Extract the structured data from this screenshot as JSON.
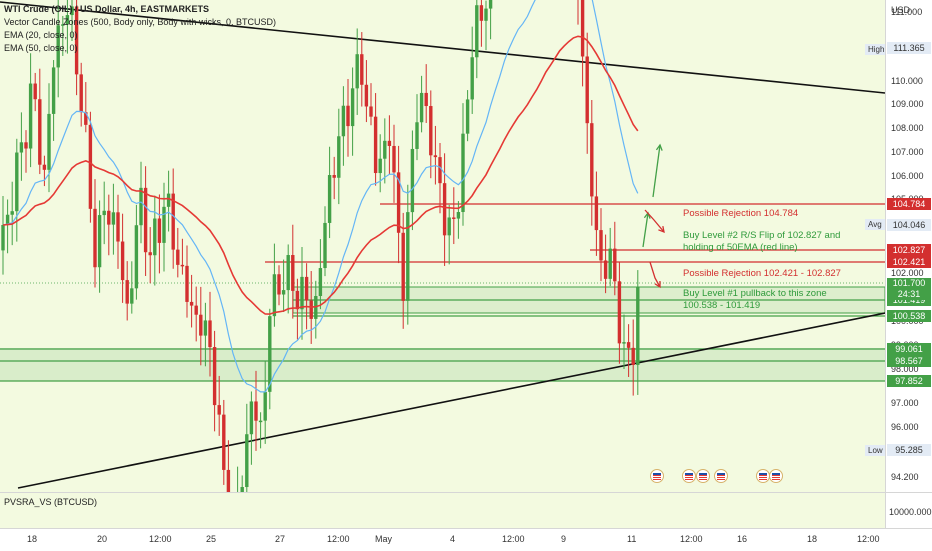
{
  "header": {
    "symbol_line": "WTI Crude (OIL) / US Dollar, 4h, EASTMARKETS",
    "indicator_1": "Vector Candle Zones (500, Body only, Body with wicks, 0, BTCUSD)",
    "indicator_2": "EMA (20, close, 0)",
    "indicator_3": "EMA (50, close, 0)"
  },
  "lower_pane": {
    "label": "PVSRA_VS (BTCUSD)",
    "axis_value": "10000.000"
  },
  "price_axis": {
    "currency": "USD",
    "ticks": [
      "111.000",
      "110.000",
      "109.000",
      "108.000",
      "107.000",
      "106.000",
      "105.000",
      "104.046",
      "103.000",
      "102.000",
      "101.000",
      "100.000",
      "99.000",
      "98.000",
      "97.000",
      "96.000",
      "95.000",
      "94.200"
    ],
    "high_tag": "High",
    "high_value": "111.365",
    "avg_tag": "Avg",
    "avg_value": "104.046",
    "low_tag": "Low",
    "low_value": "95.285",
    "current_price": "101.700",
    "countdown": "24:31"
  },
  "levels": [
    {
      "label": "104.784",
      "color": "#d32f2f"
    },
    {
      "label": "102.827",
      "color": "#d32f2f"
    },
    {
      "label": "102.421",
      "color": "#d32f2f"
    },
    {
      "label": "101.419",
      "color": "#43a047"
    },
    {
      "label": "100.538",
      "color": "#43a047"
    },
    {
      "label": "99.061",
      "color": "#43a047"
    },
    {
      "label": "98.567",
      "color": "#43a047"
    },
    {
      "label": "97.852",
      "color": "#43a047"
    }
  ],
  "annotations": {
    "rejection_1": "Possible Rejection 104.784",
    "buy_level_2_line1": "Buy Level #2 R/S Flip of 102.827 and",
    "buy_level_2_line2": "holding of 50EMA (red line)",
    "rejection_2": "Possible Rejection 102.421 - 102.827",
    "buy_level_1_line1": "Buy Level #1 pullback to this zone",
    "buy_level_1_line2": "100.538 - 101.419"
  },
  "time_axis": [
    "18",
    "20",
    "12:00",
    "25",
    "27",
    "12:00",
    "May",
    "4",
    "12:00",
    "9",
    "11",
    "12:00",
    "16",
    "18",
    "12:00"
  ],
  "colors": {
    "background": "#f3fae0",
    "bull": "#43a047",
    "bear": "#d32f2f",
    "ema20": "#64b5f6",
    "ema50": "#e53935",
    "trend": "#111111"
  }
}
